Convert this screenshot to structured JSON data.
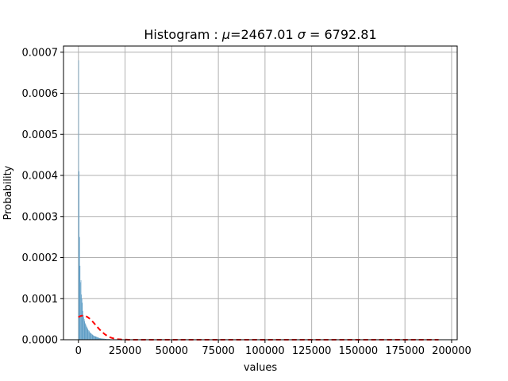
{
  "chart_data": {
    "type": "bar",
    "title": "Histogram : μ=2467.01 σ=6792.81",
    "title_parts": {
      "prefix": "Histogram : ",
      "mu_symbol": "μ",
      "mu_value": "=2467.01 ",
      "sigma_symbol": "σ",
      "sigma_value": " = 6792.81"
    },
    "xlabel": "values",
    "ylabel": "Probability",
    "xlim": [
      -8000,
      203000
    ],
    "ylim": [
      0,
      0.000715
    ],
    "x_ticks": [
      0,
      25000,
      50000,
      75000,
      100000,
      125000,
      150000,
      175000,
      200000
    ],
    "x_tick_labels": [
      "0",
      "25000",
      "50000",
      "75000",
      "100000",
      "125000",
      "150000",
      "175000",
      "200000"
    ],
    "y_ticks": [
      0,
      0.0001,
      0.0002,
      0.0003,
      0.0004,
      0.0005,
      0.0006,
      0.0007
    ],
    "y_tick_labels": [
      "0.0000",
      "0.0001",
      "0.0002",
      "0.0003",
      "0.0004",
      "0.0005",
      "0.0006",
      "0.0007"
    ],
    "grid": true,
    "bar_color": "#5b9bc4",
    "curve_color": "#ff0000",
    "histogram": {
      "bin_edges": [
        0,
        250,
        500,
        750,
        1000,
        1250,
        1500,
        1750,
        2000,
        2250,
        2500,
        2750,
        3000,
        3250,
        3500,
        3750,
        4000,
        4250,
        4500,
        4750,
        5000,
        5250,
        5500,
        5750,
        6000,
        6250,
        6500,
        6750,
        7000,
        7250,
        7500,
        7750,
        8000,
        8250,
        8500,
        8750,
        9000,
        9500,
        10000,
        10500,
        11000,
        11500,
        12000,
        13000,
        14000,
        15000,
        17000,
        19000
      ],
      "values": [
        0.00068,
        0.00041,
        0.00025,
        0.00018,
        0.00014,
        0.000145,
        0.00011,
        0.0001,
        9e-05,
        7e-05,
        6e-05,
        5.5e-05,
        5e-05,
        4.5e-05,
        4e-05,
        3.8e-05,
        3.5e-05,
        3e-05,
        3.2e-05,
        2.8e-05,
        2.5e-05,
        2.3e-05,
        2e-05,
        2.2e-05,
        1.8e-05,
        1.7e-05,
        1.6e-05,
        1.5e-05,
        1.4e-05,
        1.3e-05,
        1.2e-05,
        1.1e-05,
        1e-05,
        9.5e-06,
        9e-06,
        8.5e-06,
        8e-06,
        7e-06,
        6e-06,
        5e-06,
        4e-06,
        3.5e-06,
        3e-06,
        2.5e-06,
        2e-06,
        1.5e-06,
        1e-06
      ]
    },
    "normal_curve": {
      "mu": 2467.01,
      "sigma": 6792.81,
      "x_range": [
        0,
        193000
      ]
    }
  }
}
